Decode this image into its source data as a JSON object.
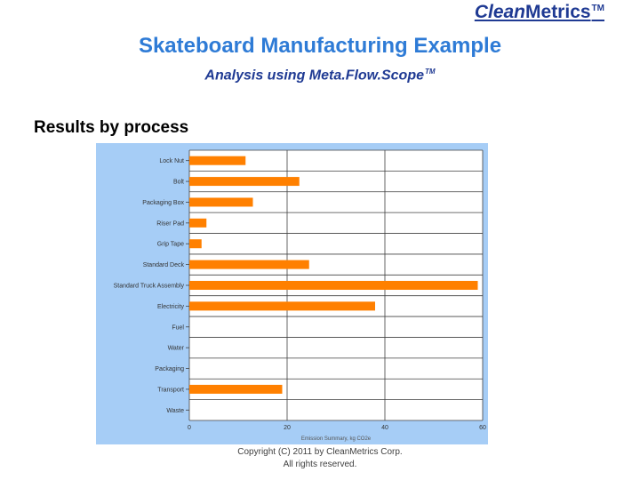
{
  "header": {
    "brand_clean": "Clean",
    "brand_metrics": "Metrics",
    "brand_tm": "TM",
    "title": "Skateboard Manufacturing Example",
    "subtitle": "Analysis using Meta.Flow.Scope",
    "subtitle_tm": "TM",
    "section": "Results by process"
  },
  "footer": {
    "copyright_line1": "Copyright (C) 2011 by CleanMetrics Corp.",
    "copyright_line2": "All rights reserved."
  },
  "colors": {
    "bar": "#ff8000",
    "panel_background": "#a6cdf6",
    "plot_background": "#ffffff",
    "grid": "#404040",
    "title": "#2e7bd6",
    "brand": "#1f3a93"
  },
  "chart_data": {
    "type": "bar",
    "orientation": "horizontal",
    "categories": [
      "Lock Nut",
      "Bolt",
      "Packaging Box",
      "Riser Pad",
      "Grip Tape",
      "Standard Deck",
      "Standard Truck Assembly",
      "Electricity",
      "Fuel",
      "Water",
      "Packaging",
      "Transport",
      "Waste"
    ],
    "values": [
      11.5,
      22.5,
      13,
      3.5,
      2.5,
      24.5,
      59,
      38,
      0,
      0,
      0,
      19,
      0
    ],
    "xlim": [
      0,
      60
    ],
    "xticks": [
      "0",
      "20",
      "40",
      "60"
    ],
    "xlabel": "Emission Summary, kg CO2e",
    "grid": true
  }
}
